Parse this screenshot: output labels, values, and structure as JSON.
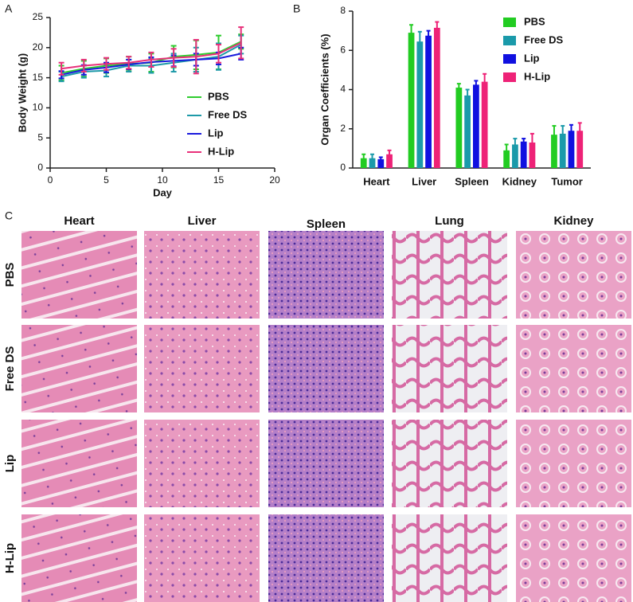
{
  "panels": [
    "A",
    "B",
    "C"
  ],
  "chart_data": [
    {
      "type": "line",
      "xlabel": "Day",
      "ylabel": "Body Weight (g)",
      "x": [
        1,
        3,
        5,
        7,
        9,
        11,
        13,
        15,
        17
      ],
      "xlim": [
        0,
        20
      ],
      "xticks": [
        0,
        5,
        10,
        15,
        20
      ],
      "ylim": [
        0,
        25
      ],
      "yticks": [
        0,
        5,
        10,
        15,
        20,
        25
      ],
      "legend": "lower right",
      "series": [
        {
          "name": "PBS",
          "color": "#2ecc2e",
          "values": [
            15.8,
            16.5,
            17,
            17.3,
            17.5,
            18.5,
            18.8,
            19.2,
            21
          ],
          "errors": [
            1.2,
            1.3,
            1.2,
            1.2,
            1.5,
            1.8,
            2.4,
            2.8,
            1.2
          ]
        },
        {
          "name": "Free DS",
          "color": "#1e9aa8",
          "values": [
            15.2,
            16,
            16.2,
            17,
            17,
            17.5,
            18,
            18.5,
            20.5
          ],
          "errors": [
            0.8,
            1,
            1,
            1,
            1.2,
            1.5,
            2,
            2.2,
            1.5
          ]
        },
        {
          "name": "Lip",
          "color": "#1a1add",
          "values": [
            15.5,
            16.3,
            16.7,
            17.2,
            17.6,
            17.8,
            18,
            18.2,
            19
          ],
          "errors": [
            0.6,
            0.8,
            0.8,
            0.8,
            0.8,
            0.9,
            1,
            1,
            1
          ]
        },
        {
          "name": "H-Lip",
          "color": "#e8307a",
          "values": [
            16.5,
            17,
            17.3,
            17.5,
            18,
            18.3,
            18.5,
            19,
            20.8
          ],
          "errors": [
            1,
            1,
            1,
            1,
            1.2,
            1.5,
            2.8,
            1.5,
            2.6
          ]
        }
      ]
    },
    {
      "type": "bar",
      "ylabel": "Organ Coefficients (%)",
      "categories": [
        "Heart",
        "Liver",
        "Spleen",
        "Kidney",
        "Tumor"
      ],
      "ylim": [
        0,
        8
      ],
      "yticks": [
        0,
        2,
        4,
        6,
        8
      ],
      "legend": "upper right",
      "series": [
        {
          "name": "PBS",
          "color": "#22cc22",
          "values": [
            0.5,
            6.9,
            4.1,
            0.9,
            1.7
          ],
          "errors": [
            0.2,
            0.4,
            0.2,
            0.3,
            0.45
          ]
        },
        {
          "name": "Free DS",
          "color": "#1a9aaa",
          "values": [
            0.5,
            6.45,
            3.7,
            1.2,
            1.75
          ],
          "errors": [
            0.2,
            0.5,
            0.3,
            0.3,
            0.4
          ]
        },
        {
          "name": "Lip",
          "color": "#1010e0",
          "values": [
            0.45,
            6.75,
            4.25,
            1.35,
            1.9
          ],
          "errors": [
            0.1,
            0.25,
            0.2,
            0.15,
            0.3
          ]
        },
        {
          "name": "H-Lip",
          "color": "#ee2277",
          "values": [
            0.7,
            7.15,
            4.4,
            1.3,
            1.9
          ],
          "errors": [
            0.2,
            0.3,
            0.4,
            0.45,
            0.4
          ]
        }
      ]
    }
  ],
  "histology": {
    "columns": [
      "Heart",
      "Liver",
      "Spleen",
      "Lung",
      "Kidney"
    ],
    "rows": [
      "PBS",
      "Free DS",
      "Lip",
      "H-Lip"
    ]
  }
}
